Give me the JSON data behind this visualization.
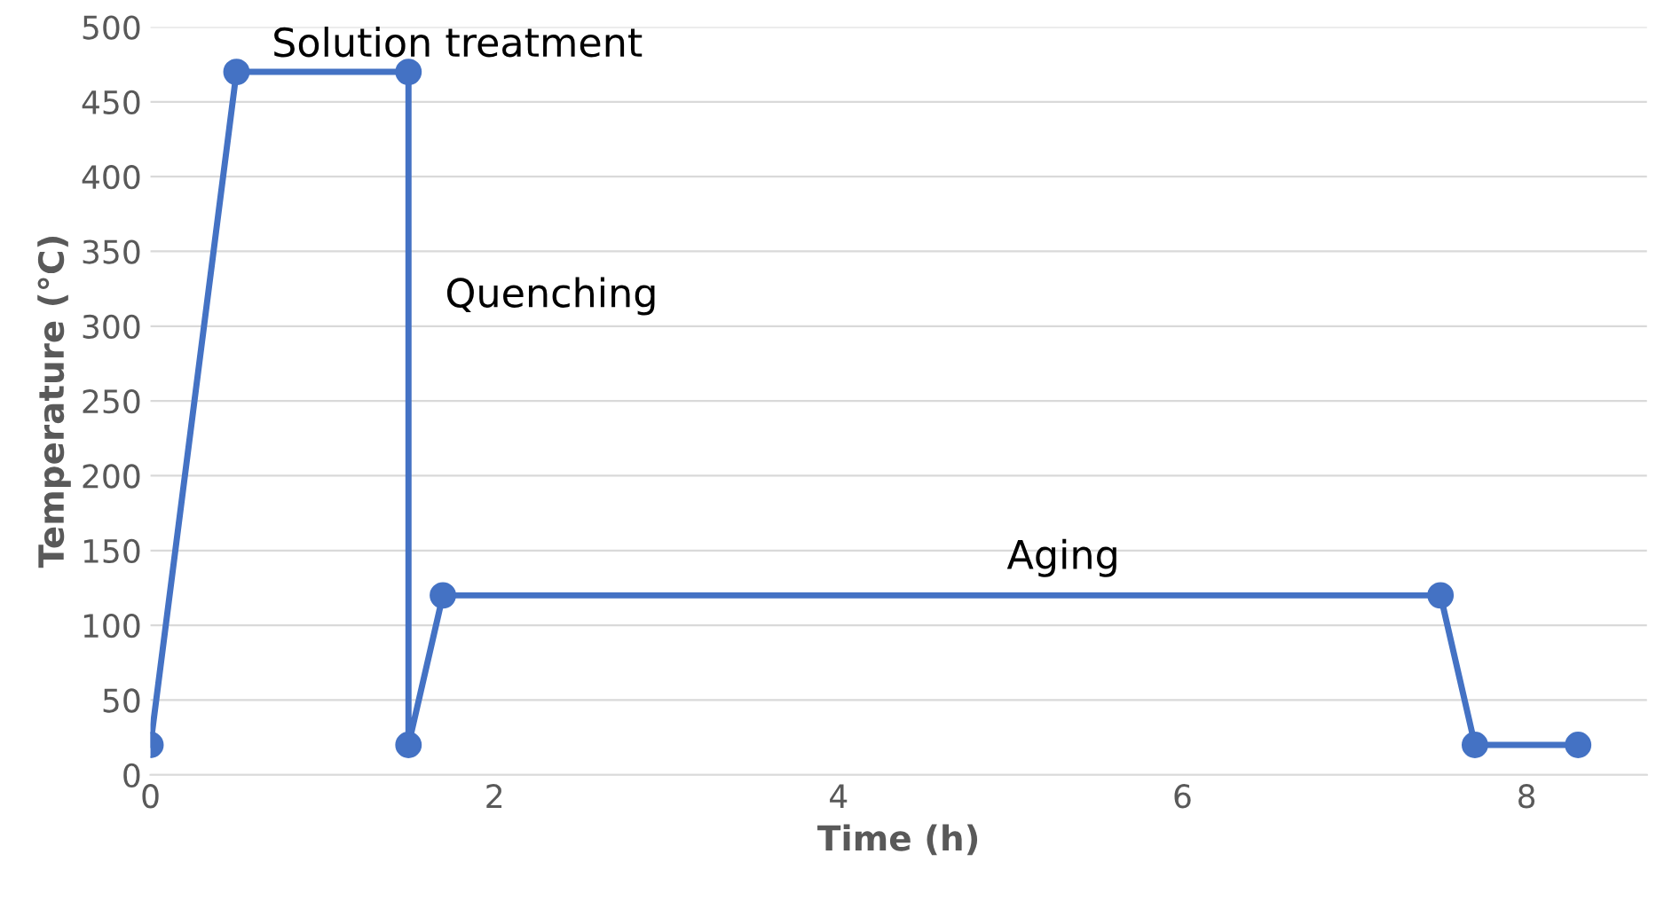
{
  "chart_data": {
    "type": "line",
    "xlabel": "Time (h)",
    "ylabel": "Temperature (°C)",
    "x": [
      0,
      0.5,
      1.5,
      1.5,
      1.7,
      7.5,
      7.7,
      8.3
    ],
    "series": [
      {
        "color": "#4472c4",
        "values": [
          20,
          470,
          470,
          20,
          120,
          120,
          20,
          20
        ]
      }
    ],
    "xlim": [
      0,
      8.7
    ],
    "xticks": [
      0,
      2,
      4,
      6,
      8
    ],
    "ylim": [
      0,
      500
    ],
    "yticks": [
      0,
      50,
      100,
      150,
      200,
      250,
      300,
      350,
      400,
      450,
      500
    ],
    "grid": "y",
    "marker": "circle",
    "line_style": "solid",
    "legend": false,
    "annotations": [
      "Solution treatment",
      "Quenching",
      "Aging"
    ]
  }
}
